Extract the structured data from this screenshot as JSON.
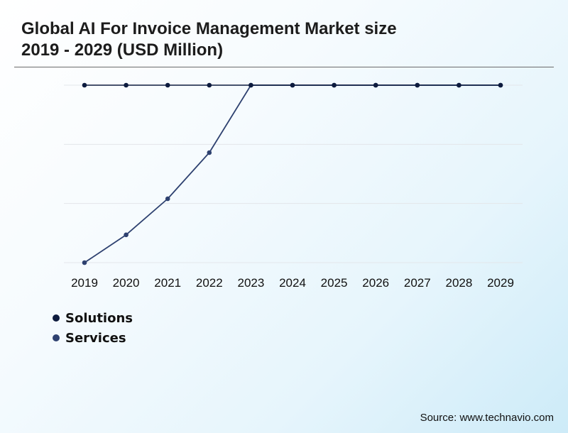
{
  "header": {
    "title_line1": "Global AI For Invoice Management Market size",
    "title_line2": "2019 - 2029 (USD Million)"
  },
  "source": "Source: www.technavio.com",
  "chart_data": {
    "type": "line",
    "title": "Global AI For Invoice Management Market size 2019 - 2029 (USD Million)",
    "categories": [
      "2019",
      "2020",
      "2021",
      "2022",
      "2023",
      "2024",
      "2025",
      "2026",
      "2027",
      "2028",
      "2029"
    ],
    "ylim": [
      0,
      3
    ],
    "grid": true,
    "legend_placement": "bottom-left",
    "series": [
      {
        "name": "Solutions",
        "color": "#0d1b3e",
        "values": [
          3,
          3,
          3,
          3,
          3,
          3,
          3,
          3,
          3,
          3,
          3
        ]
      },
      {
        "name": "Services",
        "color": "#2e4170",
        "values": [
          0,
          0.47,
          1.08,
          1.86,
          3,
          3,
          3,
          3,
          3,
          3,
          3
        ]
      }
    ]
  }
}
